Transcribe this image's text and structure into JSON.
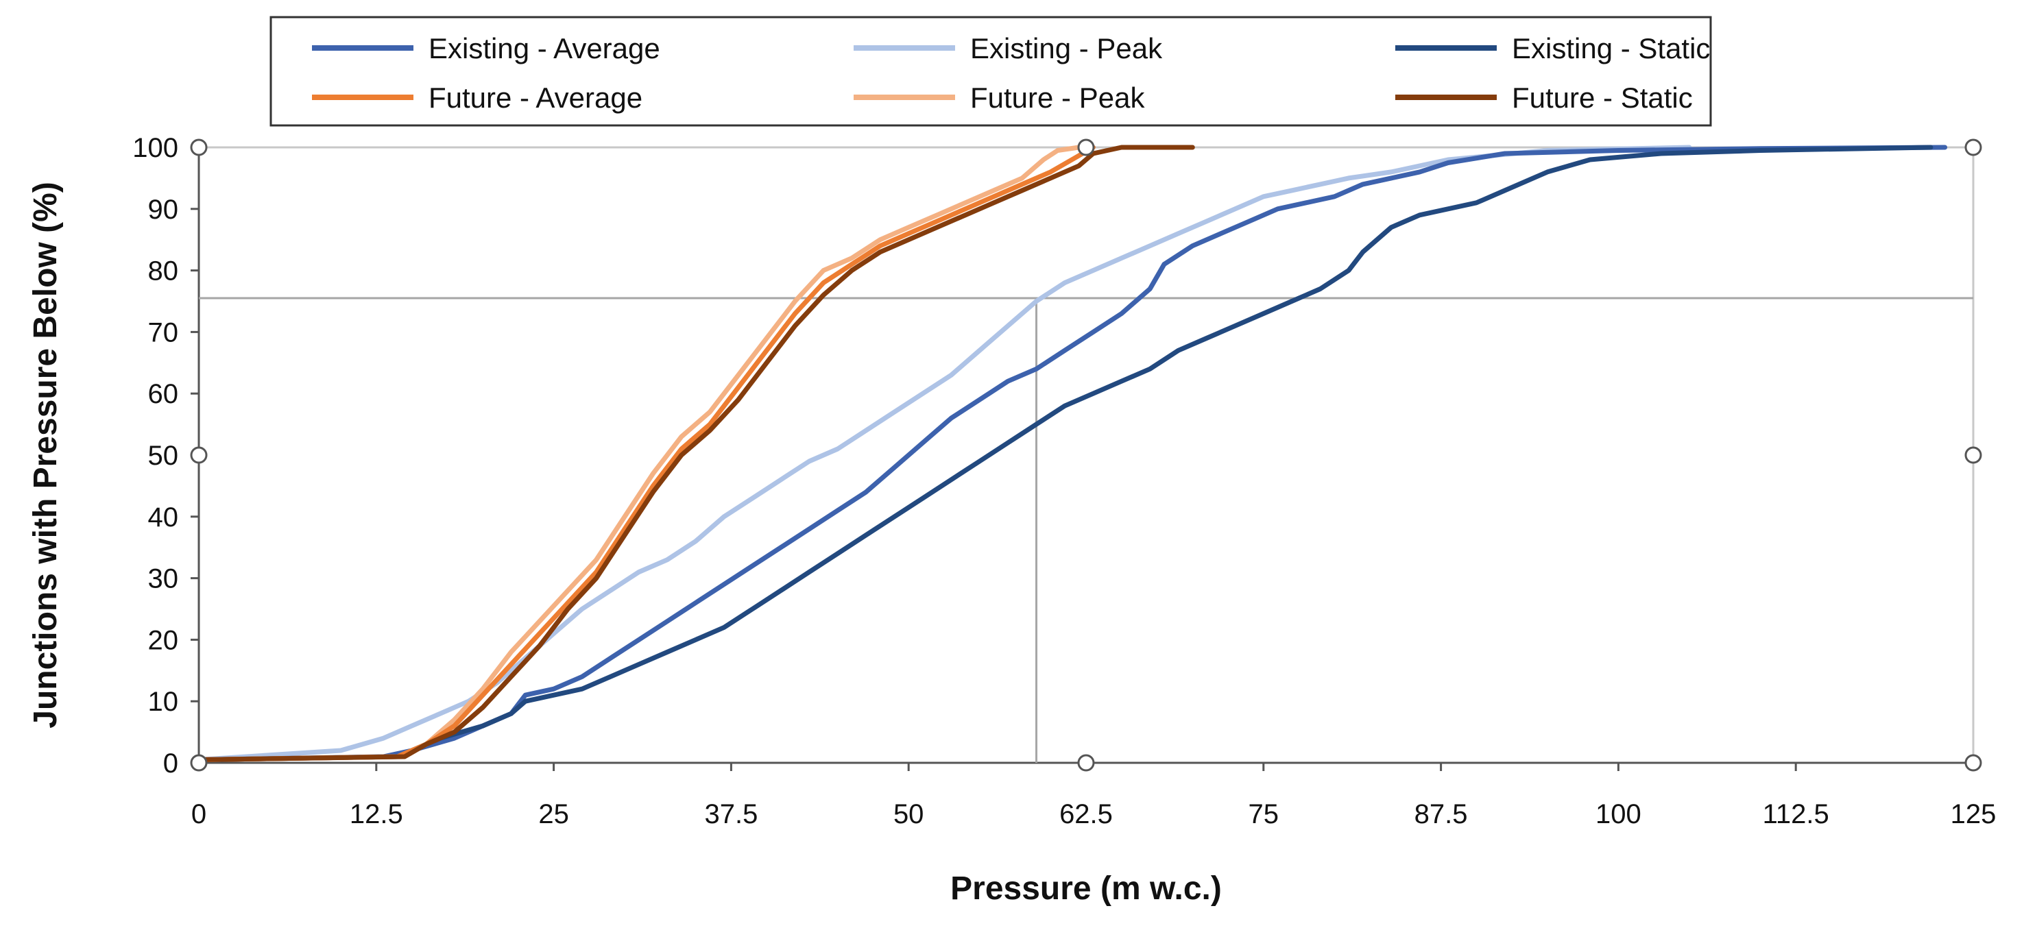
{
  "chart_data": {
    "type": "line",
    "title": "",
    "xlabel": "Pressure (m w.c.)",
    "ylabel": "Junctions with Pressure Below (%)",
    "xlim": [
      0,
      125
    ],
    "ylim": [
      0,
      100
    ],
    "x_ticks": [
      0,
      12.5,
      25,
      37.5,
      50,
      62.5,
      75,
      87.5,
      100,
      112.5,
      125
    ],
    "x_tick_labels": [
      "0",
      "12.5",
      "25",
      "37.5",
      "50",
      "62.5",
      "75",
      "87.5",
      "100",
      "112.5",
      "125"
    ],
    "y_ticks": [
      0,
      10,
      20,
      30,
      40,
      50,
      60,
      70,
      80,
      90,
      100
    ],
    "y_tick_labels": [
      "0",
      "10",
      "20",
      "30",
      "40",
      "50",
      "60",
      "70",
      "80",
      "90",
      "100"
    ],
    "grid": false,
    "legend_position": "top",
    "reference_lines": {
      "x": 59,
      "y": 75.5
    },
    "series": [
      {
        "name": "Existing - Average",
        "color": "#3d62ad",
        "x": [
          0,
          13,
          15,
          18,
          20,
          22,
          23,
          25,
          27,
          29,
          31,
          33,
          35,
          37,
          39,
          41,
          43,
          45,
          47,
          49,
          51,
          53,
          55,
          57,
          59,
          61,
          63,
          65,
          66,
          67,
          68,
          70,
          72,
          74,
          76,
          78,
          80,
          82,
          84,
          86,
          88,
          92,
          100,
          110,
          123
        ],
        "y": [
          0.5,
          1,
          2,
          4,
          6,
          8,
          11,
          12,
          14,
          17,
          20,
          23,
          26,
          29,
          32,
          35,
          38,
          41,
          44,
          48,
          52,
          56,
          59,
          62,
          64,
          67,
          70,
          73,
          75,
          77,
          81,
          84,
          86,
          88,
          90,
          91,
          92,
          94,
          95,
          96,
          97.5,
          99,
          99.5,
          99.8,
          100
        ]
      },
      {
        "name": "Existing - Peak",
        "color": "#aec3e6",
        "x": [
          0,
          10,
          13,
          15,
          17,
          19,
          21,
          23,
          25,
          27,
          29,
          31,
          33,
          35,
          37,
          39,
          41,
          43,
          45,
          47,
          49,
          51,
          53,
          55,
          57,
          59,
          61,
          63,
          65,
          67,
          69,
          71,
          73,
          75,
          77,
          79,
          81,
          84,
          88,
          95,
          105
        ],
        "y": [
          0.5,
          2,
          4,
          6,
          8,
          10,
          13,
          17,
          21,
          25,
          28,
          31,
          33,
          36,
          40,
          43,
          46,
          49,
          51,
          54,
          57,
          60,
          63,
          67,
          71,
          75,
          78,
          80,
          82,
          84,
          86,
          88,
          90,
          92,
          93,
          94,
          95,
          96,
          98,
          99.5,
          100
        ]
      },
      {
        "name": "Existing - Static",
        "color": "#22497f",
        "x": [
          0,
          14,
          15,
          17,
          20,
          22,
          23,
          25,
          27,
          29,
          31,
          33,
          35,
          37,
          39,
          41,
          43,
          45,
          47,
          49,
          51,
          53,
          55,
          57,
          59,
          61,
          63,
          65,
          67,
          69,
          71,
          73,
          75,
          77,
          79,
          81,
          82,
          84,
          86,
          88,
          90,
          92,
          95,
          98,
          103,
          110,
          122
        ],
        "y": [
          0.5,
          1,
          2,
          4,
          6,
          8,
          10,
          11,
          12,
          14,
          16,
          18,
          20,
          22,
          25,
          28,
          31,
          34,
          37,
          40,
          43,
          46,
          49,
          52,
          55,
          58,
          60,
          62,
          64,
          67,
          69,
          71,
          73,
          75,
          77,
          80,
          83,
          87,
          89,
          90,
          91,
          93,
          96,
          98,
          99,
          99.5,
          100
        ]
      },
      {
        "name": "Future - Average",
        "color": "#ed7d31",
        "x": [
          0,
          14,
          16,
          18,
          20,
          22,
          24,
          26,
          28,
          30,
          32,
          34,
          36,
          38,
          40,
          42,
          44,
          46,
          48,
          50,
          52,
          54,
          56,
          58,
          60,
          61.5,
          63
        ],
        "y": [
          0.5,
          1,
          3,
          6,
          11,
          16,
          21,
          26,
          31,
          38,
          45,
          51,
          55,
          61,
          67,
          73,
          78,
          81,
          84,
          86,
          88,
          90,
          92,
          94,
          96,
          98,
          100
        ]
      },
      {
        "name": "Future - Peak",
        "color": "#f4b183",
        "x": [
          0,
          14,
          16,
          18,
          20,
          22,
          24,
          26,
          28,
          30,
          32,
          34,
          36,
          38,
          40,
          42,
          44,
          46,
          48,
          50,
          52,
          54,
          56,
          58,
          59.5,
          60.5,
          62
        ],
        "y": [
          0.5,
          1,
          3,
          7,
          12,
          18,
          23,
          28,
          33,
          40,
          47,
          53,
          57,
          63,
          69,
          75,
          80,
          82,
          85,
          87,
          89,
          91,
          93,
          95,
          98,
          99.5,
          100
        ]
      },
      {
        "name": "Future - Static",
        "color": "#843c0c",
        "x": [
          0,
          14.5,
          16,
          18,
          20,
          22,
          24,
          26,
          28,
          30,
          32,
          34,
          36,
          38,
          40,
          42,
          44,
          46,
          48,
          50,
          52,
          54,
          56,
          58,
          60,
          62,
          63,
          65,
          70
        ],
        "y": [
          0.5,
          1,
          3,
          5,
          9,
          14,
          19,
          25,
          30,
          37,
          44,
          50,
          54,
          59,
          65,
          71,
          76,
          80,
          83,
          85,
          87,
          89,
          91,
          93,
          95,
          97,
          99,
          100,
          100
        ]
      }
    ]
  }
}
